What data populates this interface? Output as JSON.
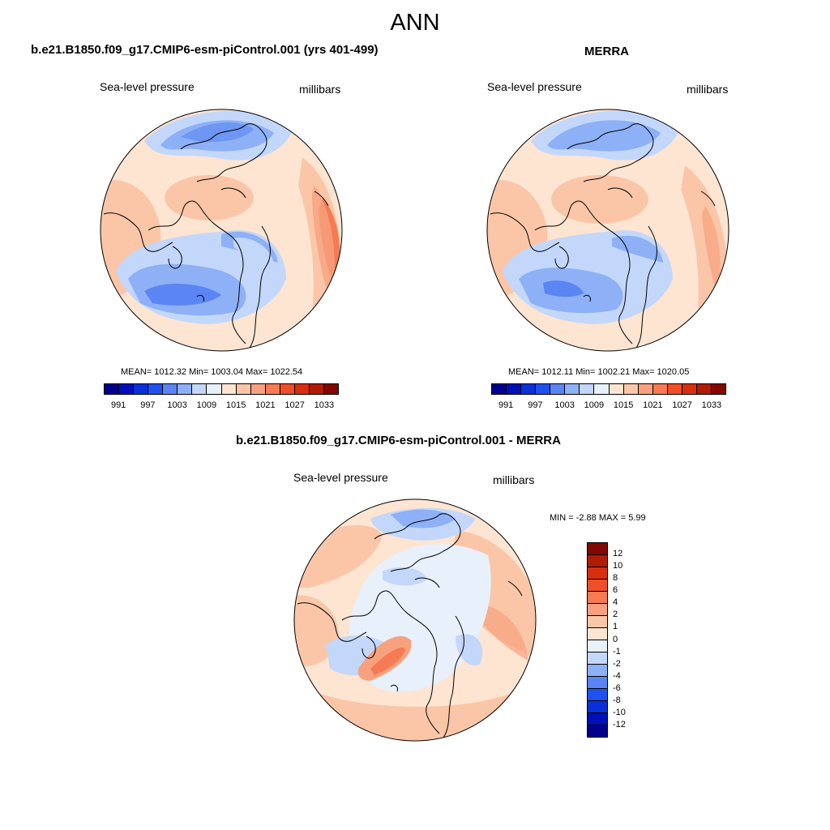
{
  "figure": {
    "season": "ANN"
  },
  "panels": [
    {
      "title": "b.e21.B1850.f09_g17.CMIP6-esm-piControl.001 (yrs 401-499)",
      "variable": "Sea-level pressure",
      "units": "millibars",
      "stats": "MEAN= 1012.32  Min= 1003.04  Max= 1022.54"
    },
    {
      "title": "MERRA",
      "variable": "Sea-level pressure",
      "units": "millibars",
      "stats": "MEAN= 1012.11  Min= 1002.21  Max= 1020.05"
    },
    {
      "title": "b.e21.B1850.f09_g17.CMIP6-esm-piControl.001 - MERRA",
      "variable": "Sea-level pressure",
      "units": "millibars",
      "stats": "MIN =  -2.88 MAX =   5.99"
    }
  ],
  "colorbar_abs": {
    "ticks": [
      "991",
      "997",
      "1003",
      "1009",
      "1015",
      "1021",
      "1027",
      "1033"
    ],
    "colors": [
      "#00008c",
      "#0010b8",
      "#0a30d8",
      "#2050ee",
      "#5a85f2",
      "#8db0f6",
      "#c3d7fa",
      "#e8f0fc",
      "#fde5d2",
      "#fbc6a8",
      "#f8a17e",
      "#f67b52",
      "#f04e28",
      "#d8300e",
      "#b01c04",
      "#820800"
    ]
  },
  "colorbar_diff": {
    "ticks": [
      "12",
      "10",
      "8",
      "6",
      "4",
      "2",
      "1",
      "0",
      "-1",
      "-2",
      "-4",
      "-6",
      "-8",
      "-10",
      "-12"
    ],
    "colors": [
      "#820800",
      "#b01c04",
      "#d8300e",
      "#f04e28",
      "#f67b52",
      "#f8a17e",
      "#fbc6a8",
      "#fde5d2",
      "#e8f0fc",
      "#c3d7fa",
      "#8db0f6",
      "#5a85f2",
      "#2050ee",
      "#0a30d8",
      "#0010b8",
      "#00008c"
    ]
  },
  "map_fields": {
    "colors": {
      "background_warm": "#fde5d2",
      "warm_1": "#fbc6a8",
      "warm_2": "#f8a17e",
      "warm_3": "#f67b52",
      "cool_0": "#e8f0fc",
      "cool_1": "#c3d7fa",
      "cool_2": "#8db0f6",
      "cool_3": "#5a85f2"
    }
  }
}
